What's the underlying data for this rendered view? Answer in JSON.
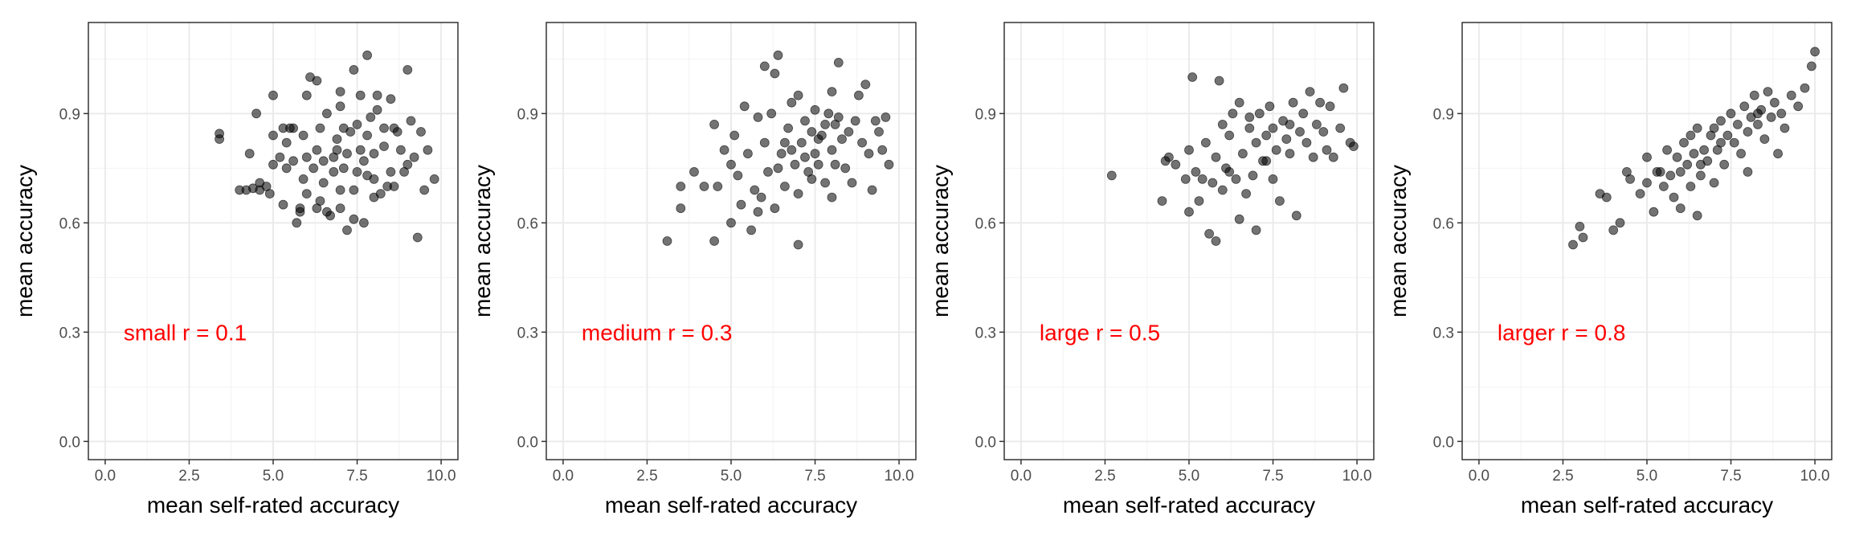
{
  "chart_data": [
    {
      "type": "scatter",
      "annotation": "small r = 0.1",
      "xlabel": "mean self-rated accuracy",
      "ylabel": "mean accuracy",
      "xlim": [
        -0.5,
        10.5
      ],
      "ylim": [
        -0.05,
        1.15
      ],
      "xticks": [
        "0.0",
        "2.5",
        "5.0",
        "7.5",
        "10.0"
      ],
      "yticks": [
        "0.0",
        "0.3",
        "0.6",
        "0.9"
      ],
      "point_color": "#000000",
      "annotation_color": "#ff0000",
      "points": [
        [
          3.4,
          0.83
        ],
        [
          3.4,
          0.845
        ],
        [
          4.0,
          0.69
        ],
        [
          4.2,
          0.69
        ],
        [
          4.4,
          0.695
        ],
        [
          4.3,
          0.79
        ],
        [
          4.6,
          0.69
        ],
        [
          4.6,
          0.71
        ],
        [
          4.5,
          0.9
        ],
        [
          4.8,
          0.7
        ],
        [
          4.9,
          0.68
        ],
        [
          5.0,
          0.76
        ],
        [
          5.0,
          0.84
        ],
        [
          5.0,
          0.95
        ],
        [
          5.2,
          0.78
        ],
        [
          5.3,
          0.86
        ],
        [
          5.3,
          0.65
        ],
        [
          5.4,
          0.82
        ],
        [
          5.4,
          0.75
        ],
        [
          5.5,
          0.86
        ],
        [
          5.6,
          0.77
        ],
        [
          5.6,
          0.86
        ],
        [
          5.7,
          0.6
        ],
        [
          5.8,
          0.63
        ],
        [
          5.8,
          0.64
        ],
        [
          5.9,
          0.72
        ],
        [
          5.9,
          0.84
        ],
        [
          6.0,
          0.78
        ],
        [
          6.0,
          0.68
        ],
        [
          6.0,
          0.95
        ],
        [
          6.1,
          1.0
        ],
        [
          6.2,
          0.75
        ],
        [
          6.3,
          0.8
        ],
        [
          6.3,
          0.64
        ],
        [
          6.3,
          0.99
        ],
        [
          6.4,
          0.66
        ],
        [
          6.4,
          0.86
        ],
        [
          6.5,
          0.71
        ],
        [
          6.6,
          0.63
        ],
        [
          6.6,
          0.9
        ],
        [
          6.7,
          0.62
        ],
        [
          6.8,
          0.74
        ],
        [
          6.8,
          0.78
        ],
        [
          6.9,
          0.83
        ],
        [
          7.0,
          0.96
        ],
        [
          7.0,
          0.92
        ],
        [
          7.0,
          0.69
        ],
        [
          7.0,
          0.64
        ],
        [
          7.1,
          0.75
        ],
        [
          7.2,
          0.58
        ],
        [
          7.2,
          0.79
        ],
        [
          7.3,
          0.85
        ],
        [
          7.4,
          0.61
        ],
        [
          7.4,
          0.69
        ],
        [
          7.4,
          1.02
        ],
        [
          7.5,
          0.87
        ],
        [
          7.5,
          0.74
        ],
        [
          7.6,
          0.8
        ],
        [
          7.6,
          0.95
        ],
        [
          7.7,
          0.6
        ],
        [
          7.8,
          0.73
        ],
        [
          7.8,
          1.06
        ],
        [
          7.8,
          0.84
        ],
        [
          7.9,
          0.89
        ],
        [
          8.0,
          0.79
        ],
        [
          8.0,
          0.72
        ],
        [
          8.0,
          0.67
        ],
        [
          8.1,
          0.95
        ],
        [
          8.1,
          0.91
        ],
        [
          8.2,
          0.68
        ],
        [
          8.3,
          0.81
        ],
        [
          8.3,
          0.86
        ],
        [
          8.4,
          0.7
        ],
        [
          8.5,
          0.94
        ],
        [
          8.5,
          0.74
        ],
        [
          8.6,
          0.7
        ],
        [
          8.7,
          0.85
        ],
        [
          8.8,
          0.8
        ],
        [
          8.9,
          0.74
        ],
        [
          9.0,
          0.76
        ],
        [
          9.0,
          1.02
        ],
        [
          9.1,
          0.88
        ],
        [
          9.2,
          0.78
        ],
        [
          9.3,
          0.56
        ],
        [
          9.4,
          0.85
        ],
        [
          9.5,
          0.69
        ],
        [
          9.6,
          0.8
        ],
        [
          9.8,
          0.72
        ],
        [
          6.9,
          0.8
        ],
        [
          7.1,
          0.86
        ],
        [
          6.5,
          0.77
        ],
        [
          7.7,
          0.77
        ],
        [
          8.6,
          0.86
        ]
      ]
    },
    {
      "type": "scatter",
      "annotation": "medium r = 0.3",
      "xlabel": "mean self-rated accuracy",
      "ylabel": "mean accuracy",
      "xlim": [
        -0.5,
        10.5
      ],
      "ylim": [
        -0.05,
        1.15
      ],
      "xticks": [
        "0.0",
        "2.5",
        "5.0",
        "7.5",
        "10.0"
      ],
      "yticks": [
        "0.0",
        "0.3",
        "0.6",
        "0.9"
      ],
      "point_color": "#000000",
      "annotation_color": "#ff0000",
      "points": [
        [
          3.1,
          0.55
        ],
        [
          3.5,
          0.64
        ],
        [
          3.5,
          0.7
        ],
        [
          3.9,
          0.74
        ],
        [
          4.2,
          0.7
        ],
        [
          4.5,
          0.55
        ],
        [
          4.5,
          0.87
        ],
        [
          4.6,
          0.7
        ],
        [
          4.8,
          0.8
        ],
        [
          5.0,
          0.6
        ],
        [
          5.0,
          0.76
        ],
        [
          5.1,
          0.84
        ],
        [
          5.2,
          0.73
        ],
        [
          5.3,
          0.65
        ],
        [
          5.4,
          0.92
        ],
        [
          5.5,
          0.79
        ],
        [
          5.6,
          0.58
        ],
        [
          5.7,
          0.69
        ],
        [
          5.8,
          0.89
        ],
        [
          5.8,
          0.63
        ],
        [
          5.9,
          0.67
        ],
        [
          6.0,
          1.03
        ],
        [
          6.0,
          0.82
        ],
        [
          6.1,
          0.74
        ],
        [
          6.2,
          0.9
        ],
        [
          6.3,
          0.64
        ],
        [
          6.3,
          1.01
        ],
        [
          6.4,
          0.75
        ],
        [
          6.4,
          1.06
        ],
        [
          6.5,
          0.79
        ],
        [
          6.6,
          0.7
        ],
        [
          6.7,
          0.86
        ],
        [
          6.8,
          0.8
        ],
        [
          6.8,
          0.93
        ],
        [
          6.9,
          0.76
        ],
        [
          7.0,
          0.54
        ],
        [
          7.0,
          0.68
        ],
        [
          7.0,
          0.95
        ],
        [
          7.1,
          0.82
        ],
        [
          7.2,
          0.88
        ],
        [
          7.3,
          0.74
        ],
        [
          7.4,
          0.85
        ],
        [
          7.5,
          0.79
        ],
        [
          7.5,
          0.91
        ],
        [
          7.6,
          0.76
        ],
        [
          7.7,
          0.84
        ],
        [
          7.8,
          0.87
        ],
        [
          7.8,
          0.71
        ],
        [
          7.9,
          0.9
        ],
        [
          8.0,
          0.8
        ],
        [
          8.0,
          0.67
        ],
        [
          8.0,
          0.96
        ],
        [
          8.1,
          0.76
        ],
        [
          8.2,
          1.04
        ],
        [
          8.2,
          0.89
        ],
        [
          8.3,
          0.83
        ],
        [
          8.4,
          0.75
        ],
        [
          8.5,
          0.85
        ],
        [
          8.6,
          0.71
        ],
        [
          8.7,
          0.88
        ],
        [
          8.8,
          0.95
        ],
        [
          8.9,
          0.82
        ],
        [
          9.0,
          0.98
        ],
        [
          9.1,
          0.79
        ],
        [
          9.2,
          0.69
        ],
        [
          9.3,
          0.88
        ],
        [
          9.4,
          0.85
        ],
        [
          9.5,
          0.8
        ],
        [
          9.6,
          0.89
        ],
        [
          9.7,
          0.76
        ],
        [
          7.2,
          0.78
        ],
        [
          7.4,
          0.72
        ],
        [
          6.6,
          0.82
        ],
        [
          7.6,
          0.83
        ],
        [
          8.1,
          0.87
        ]
      ]
    },
    {
      "type": "scatter",
      "annotation": "large r = 0.5",
      "xlabel": "mean self-rated accuracy",
      "ylabel": "mean accuracy",
      "xlim": [
        -0.5,
        10.5
      ],
      "ylim": [
        -0.05,
        1.15
      ],
      "xticks": [
        "0.0",
        "2.5",
        "5.0",
        "7.5",
        "10.0"
      ],
      "yticks": [
        "0.0",
        "0.3",
        "0.6",
        "0.9"
      ],
      "point_color": "#000000",
      "annotation_color": "#ff0000",
      "points": [
        [
          2.7,
          0.73
        ],
        [
          4.2,
          0.66
        ],
        [
          4.3,
          0.77
        ],
        [
          4.4,
          0.78
        ],
        [
          4.6,
          0.76
        ],
        [
          4.9,
          0.72
        ],
        [
          5.0,
          0.63
        ],
        [
          5.0,
          0.8
        ],
        [
          5.1,
          1.0
        ],
        [
          5.2,
          0.74
        ],
        [
          5.3,
          0.66
        ],
        [
          5.4,
          0.72
        ],
        [
          5.5,
          0.82
        ],
        [
          5.6,
          0.57
        ],
        [
          5.7,
          0.71
        ],
        [
          5.8,
          0.55
        ],
        [
          5.8,
          0.78
        ],
        [
          5.9,
          0.99
        ],
        [
          6.0,
          0.87
        ],
        [
          6.0,
          0.69
        ],
        [
          6.2,
          0.84
        ],
        [
          6.2,
          0.74
        ],
        [
          6.3,
          0.9
        ],
        [
          6.4,
          0.72
        ],
        [
          6.5,
          0.61
        ],
        [
          6.5,
          0.93
        ],
        [
          6.6,
          0.79
        ],
        [
          6.7,
          0.68
        ],
        [
          6.8,
          0.86
        ],
        [
          6.9,
          0.73
        ],
        [
          7.0,
          0.58
        ],
        [
          7.0,
          0.82
        ],
        [
          7.1,
          0.9
        ],
        [
          7.2,
          0.77
        ],
        [
          7.3,
          0.84
        ],
        [
          7.4,
          0.92
        ],
        [
          7.5,
          0.72
        ],
        [
          7.5,
          0.86
        ],
        [
          7.6,
          0.8
        ],
        [
          7.7,
          0.66
        ],
        [
          7.8,
          0.88
        ],
        [
          7.9,
          0.83
        ],
        [
          8.0,
          0.79
        ],
        [
          8.1,
          0.93
        ],
        [
          8.2,
          0.62
        ],
        [
          8.3,
          0.85
        ],
        [
          8.4,
          0.9
        ],
        [
          8.5,
          0.82
        ],
        [
          8.6,
          0.96
        ],
        [
          8.7,
          0.78
        ],
        [
          8.8,
          0.87
        ],
        [
          8.9,
          0.93
        ],
        [
          9.0,
          0.85
        ],
        [
          9.1,
          0.8
        ],
        [
          9.2,
          0.92
        ],
        [
          9.3,
          0.78
        ],
        [
          9.5,
          0.86
        ],
        [
          9.6,
          0.97
        ],
        [
          9.8,
          0.82
        ],
        [
          9.9,
          0.81
        ],
        [
          6.1,
          0.75
        ],
        [
          7.3,
          0.77
        ],
        [
          6.8,
          0.89
        ],
        [
          8.0,
          0.87
        ]
      ]
    },
    {
      "type": "scatter",
      "annotation": "larger r = 0.8",
      "xlabel": "mean self-rated accuracy",
      "ylabel": "mean accuracy",
      "xlim": [
        -0.5,
        10.5
      ],
      "ylim": [
        -0.05,
        1.15
      ],
      "xticks": [
        "0.0",
        "2.5",
        "5.0",
        "7.5",
        "10.0"
      ],
      "yticks": [
        "0.0",
        "0.3",
        "0.6",
        "0.9"
      ],
      "point_color": "#000000",
      "annotation_color": "#ff0000",
      "points": [
        [
          2.8,
          0.54
        ],
        [
          3.0,
          0.59
        ],
        [
          3.1,
          0.56
        ],
        [
          3.6,
          0.68
        ],
        [
          3.8,
          0.67
        ],
        [
          4.0,
          0.58
        ],
        [
          4.2,
          0.6
        ],
        [
          4.4,
          0.74
        ],
        [
          4.5,
          0.72
        ],
        [
          4.8,
          0.68
        ],
        [
          5.0,
          0.71
        ],
        [
          5.0,
          0.78
        ],
        [
          5.2,
          0.63
        ],
        [
          5.4,
          0.74
        ],
        [
          5.5,
          0.7
        ],
        [
          5.6,
          0.8
        ],
        [
          5.7,
          0.73
        ],
        [
          5.8,
          0.67
        ],
        [
          5.9,
          0.78
        ],
        [
          6.0,
          0.64
        ],
        [
          6.0,
          0.74
        ],
        [
          6.1,
          0.82
        ],
        [
          6.2,
          0.76
        ],
        [
          6.3,
          0.7
        ],
        [
          6.3,
          0.84
        ],
        [
          6.4,
          0.79
        ],
        [
          6.5,
          0.62
        ],
        [
          6.5,
          0.86
        ],
        [
          6.6,
          0.73
        ],
        [
          6.7,
          0.8
        ],
        [
          6.8,
          0.77
        ],
        [
          6.9,
          0.84
        ],
        [
          7.0,
          0.71
        ],
        [
          7.0,
          0.86
        ],
        [
          7.1,
          0.8
        ],
        [
          7.2,
          0.88
        ],
        [
          7.3,
          0.76
        ],
        [
          7.4,
          0.84
        ],
        [
          7.5,
          0.9
        ],
        [
          7.6,
          0.82
        ],
        [
          7.7,
          0.87
        ],
        [
          7.8,
          0.79
        ],
        [
          7.9,
          0.92
        ],
        [
          8.0,
          0.85
        ],
        [
          8.0,
          0.74
        ],
        [
          8.1,
          0.89
        ],
        [
          8.2,
          0.95
        ],
        [
          8.3,
          0.87
        ],
        [
          8.4,
          0.91
        ],
        [
          8.5,
          0.83
        ],
        [
          8.6,
          0.96
        ],
        [
          8.7,
          0.89
        ],
        [
          8.8,
          0.93
        ],
        [
          8.9,
          0.79
        ],
        [
          9.0,
          0.9
        ],
        [
          9.1,
          0.86
        ],
        [
          9.3,
          0.95
        ],
        [
          9.5,
          0.92
        ],
        [
          9.7,
          0.97
        ],
        [
          9.9,
          1.03
        ],
        [
          10.0,
          1.07
        ],
        [
          6.6,
          0.76
        ],
        [
          7.2,
          0.82
        ],
        [
          8.3,
          0.9
        ],
        [
          5.3,
          0.74
        ]
      ]
    }
  ]
}
